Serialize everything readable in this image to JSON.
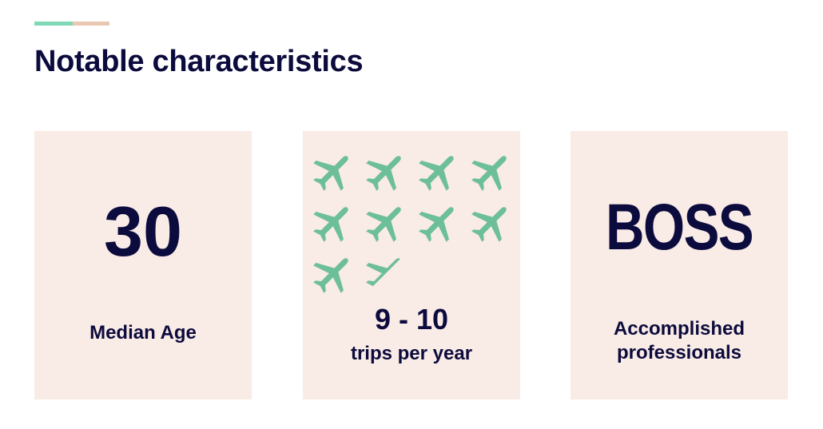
{
  "header": {
    "title": "Notable characteristics",
    "accent_colors": [
      "#7fd8b6",
      "#e8c8b0"
    ]
  },
  "cards": [
    {
      "value": "30",
      "label": "Median Age"
    },
    {
      "value": "9 - 10",
      "label": "trips per year",
      "icon": "airplane-icon",
      "icon_count": 9.5,
      "icon_color": "#6cbf99"
    },
    {
      "value": "BOSS",
      "label_line1": "Accomplished",
      "label_line2": "professionals"
    }
  ],
  "colors": {
    "text": "#0c0b3d",
    "card_background": "#f9ebe5"
  }
}
